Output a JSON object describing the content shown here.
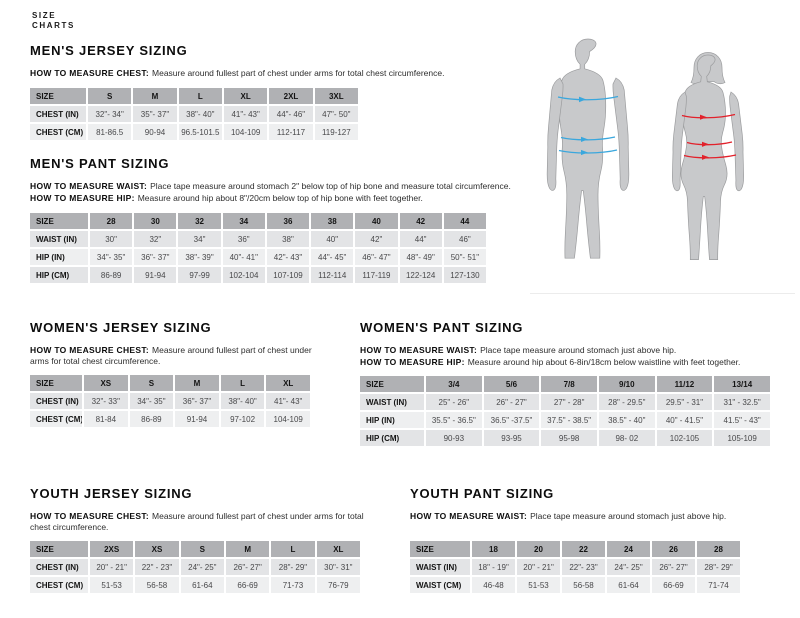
{
  "page_label": {
    "line1": "SIZE",
    "line2": "CHARTS"
  },
  "colors": {
    "male_arrow": "#3aa7dd",
    "female_arrow": "#e2212b",
    "silhouette": "#c8c9cb",
    "table_header_bg": "#b0b1b4"
  },
  "sections": {
    "mens_jersey": {
      "title": "MEN'S JERSEY SIZING",
      "howto": [
        {
          "label": "HOW TO MEASURE CHEST:",
          "text": "Measure around fullest part of chest under arms for total chest circumference."
        }
      ],
      "table": {
        "header": [
          "SIZE",
          "S",
          "M",
          "L",
          "XL",
          "2XL",
          "3XL"
        ],
        "rows": [
          [
            "CHEST (IN)",
            "32\"- 34\"",
            "35\"- 37\"",
            "38\"- 40\"",
            "41\"- 43\"",
            "44\"- 46\"",
            "47\"- 50\""
          ],
          [
            "CHEST (CM)",
            "81-86.5",
            "90-94",
            "96.5-101.5",
            "104-109",
            "112-117",
            "119-127"
          ]
        ]
      }
    },
    "mens_pant": {
      "title": "MEN'S PANT SIZING",
      "howto": [
        {
          "label": "HOW TO MEASURE WAIST:",
          "text": "Place tape measure around stomach 2\" below top of hip bone and measure total circumference."
        },
        {
          "label": "HOW TO MEASURE HIP:",
          "text": "Measure around hip about 8\"/20cm below top of hip bone with feet together."
        }
      ],
      "table": {
        "header": [
          "SIZE",
          "28",
          "30",
          "32",
          "34",
          "36",
          "38",
          "40",
          "42",
          "44"
        ],
        "rows": [
          [
            "WAIST (IN)",
            "30\"",
            "32\"",
            "34\"",
            "36\"",
            "38\"",
            "40\"",
            "42\"",
            "44\"",
            "46\""
          ],
          [
            "HIP (IN)",
            "34\"- 35\"",
            "36\"- 37\"",
            "38\"- 39\"",
            "40\"- 41\"",
            "42\"- 43\"",
            "44\"- 45\"",
            "46\"- 47\"",
            "48\"- 49\"",
            "50\"- 51\""
          ],
          [
            "HIP (CM)",
            "86-89",
            "91-94",
            "97-99",
            "102-104",
            "107-109",
            "112-114",
            "117-119",
            "122-124",
            "127-130"
          ]
        ]
      }
    },
    "womens_jersey": {
      "title": "WOMEN'S JERSEY SIZING",
      "howto": [
        {
          "label": "HOW TO MEASURE CHEST:",
          "text": "Measure around fullest part of chest under arms for total chest circumference."
        }
      ],
      "table": {
        "header": [
          "SIZE",
          "XS",
          "S",
          "M",
          "L",
          "XL"
        ],
        "rows": [
          [
            "CHEST (IN)",
            "32\"- 33\"",
            "34\"- 35\"",
            "36\"- 37\"",
            "38\"- 40\"",
            "41\"- 43\""
          ],
          [
            "CHEST (CM)",
            "81-84",
            "86-89",
            "91-94",
            "97-102",
            "104-109"
          ]
        ]
      }
    },
    "womens_pant": {
      "title": "WOMEN'S PANT SIZING",
      "howto": [
        {
          "label": "HOW TO MEASURE WAIST:",
          "text": "Place tape measure around stomach just above hip."
        },
        {
          "label": "HOW TO MEASURE HIP:",
          "text": "Measure around hip about 6-8in/18cm below waistline with feet together."
        }
      ],
      "table": {
        "header": [
          "SIZE",
          "3/4",
          "5/6",
          "7/8",
          "9/10",
          "11/12",
          "13/14"
        ],
        "rows": [
          [
            "WAIST (IN)",
            "25\" - 26\"",
            "26\" - 27\"",
            "27\" - 28\"",
            "28\" - 29.5\"",
            "29.5\" - 31\"",
            "31\" - 32.5\""
          ],
          [
            "HIP (IN)",
            "35.5\" - 36.5\"",
            "36.5\" -37.5\"",
            "37.5\" - 38.5\"",
            "38.5\" - 40\"",
            "40\" - 41.5\"",
            "41.5\" - 43\""
          ],
          [
            "HIP (CM)",
            "90-93",
            "93-95",
            "95-98",
            "98- 02",
            "102-105",
            "105-109"
          ]
        ]
      }
    },
    "youth_jersey": {
      "title": "YOUTH JERSEY SIZING",
      "howto": [
        {
          "label": "HOW TO MEASURE CHEST:",
          "text": "Measure around fullest part of chest under arms for total chest circumference."
        }
      ],
      "table": {
        "header": [
          "SIZE",
          "2XS",
          "XS",
          "S",
          "M",
          "L",
          "XL"
        ],
        "rows": [
          [
            "CHEST (IN)",
            "20\" - 21\"",
            "22\" - 23\"",
            "24\"- 25\"",
            "26\"- 27\"",
            "28\"- 29\"",
            "30\"- 31\""
          ],
          [
            "CHEST (CM)",
            "51-53",
            "56-58",
            "61-64",
            "66-69",
            "71-73",
            "76-79"
          ]
        ]
      }
    },
    "youth_pant": {
      "title": "YOUTH PANT SIZING",
      "howto": [
        {
          "label": "HOW TO MEASURE WAIST:",
          "text": "Place tape measure around stomach just above hip."
        }
      ],
      "table": {
        "header": [
          "SIZE",
          "18",
          "20",
          "22",
          "24",
          "26",
          "28"
        ],
        "rows": [
          [
            "WAIST (IN)",
            "18\" - 19\"",
            "20\" - 21\"",
            "22\"- 23\"",
            "24\"- 25\"",
            "26\"- 27\"",
            "28\"- 29\""
          ],
          [
            "WAIST (CM)",
            "46-48",
            "51-53",
            "56-58",
            "61-64",
            "66-69",
            "71-74"
          ]
        ]
      }
    }
  },
  "figures": {
    "male_label": "male body measurement figure",
    "female_label": "female body measurement figure"
  }
}
